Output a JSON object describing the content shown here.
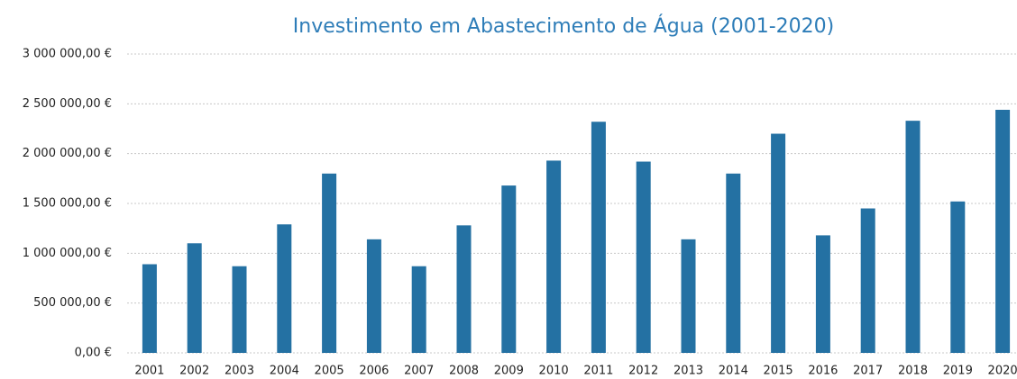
{
  "chart_data": {
    "type": "bar",
    "title": "Investimento em Abastecimento de Água (2001-2020)",
    "categories": [
      "2001",
      "2002",
      "2003",
      "2004",
      "2005",
      "2006",
      "2007",
      "2008",
      "2009",
      "2010",
      "2011",
      "2012",
      "2013",
      "2014",
      "2015",
      "2016",
      "2017",
      "2018",
      "2019",
      "2020"
    ],
    "values": [
      890000,
      1100000,
      870000,
      1290000,
      1800000,
      1140000,
      870000,
      1280000,
      1680000,
      1930000,
      2320000,
      1920000,
      1140000,
      1800000,
      2200000,
      1180000,
      1450000,
      2330000,
      1520000,
      2440000
    ],
    "color": "#2471a3",
    "ylim": [
      0,
      3000000
    ],
    "yticks": [
      {
        "value": 0,
        "label": "0,00 €"
      },
      {
        "value": 500000,
        "label": "500 000,00 €"
      },
      {
        "value": 1000000,
        "label": "1 000 000,00 €"
      },
      {
        "value": 1500000,
        "label": "1 500 000,00 €"
      },
      {
        "value": 2000000,
        "label": "2 000 000,00 €"
      },
      {
        "value": 2500000,
        "label": "2 500 000,00 €"
      },
      {
        "value": 3000000,
        "label": "3 000 000,00 €"
      }
    ],
    "grid": true
  }
}
